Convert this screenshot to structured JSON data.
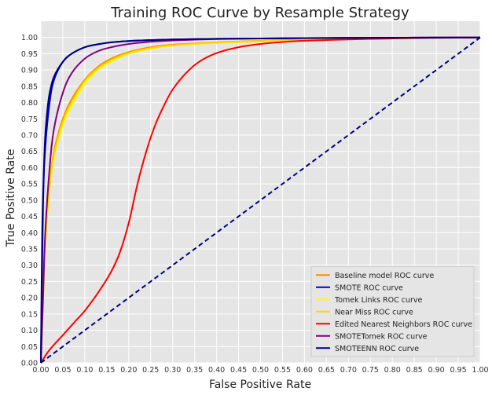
{
  "chart_data": {
    "type": "line",
    "title": "Training ROC Curve by Resample Strategy",
    "xlabel": "False Positive Rate",
    "ylabel": "True Positive Rate",
    "xlim": [
      0,
      1
    ],
    "ylim": [
      0,
      1.05
    ],
    "xticks": [
      "0.00",
      "0.05",
      "0.10",
      "0.15",
      "0.20",
      "0.25",
      "0.30",
      "0.35",
      "0.40",
      "0.45",
      "0.50",
      "0.55",
      "0.60",
      "0.65",
      "0.70",
      "0.75",
      "0.80",
      "0.85",
      "0.90",
      "0.95",
      "1.00"
    ],
    "yticks": [
      "0.00",
      "0.05",
      "0.10",
      "0.15",
      "0.20",
      "0.25",
      "0.30",
      "0.35",
      "0.40",
      "0.45",
      "0.50",
      "0.55",
      "0.60",
      "0.65",
      "0.70",
      "0.75",
      "0.80",
      "0.85",
      "0.90",
      "0.95",
      "1.00"
    ],
    "grid": true,
    "legend_position": "bottom-right",
    "background": "#e5e5e5",
    "series": [
      {
        "name": "Baseline model ROC curve",
        "color": "#ff8c00",
        "x": [
          0,
          0.005,
          0.01,
          0.02,
          0.03,
          0.05,
          0.07,
          0.1,
          0.13,
          0.16,
          0.2,
          0.25,
          0.3,
          0.4,
          0.5,
          0.6,
          0.7,
          0.8,
          0.9,
          1.0
        ],
        "y": [
          0,
          0.2,
          0.38,
          0.55,
          0.65,
          0.75,
          0.81,
          0.87,
          0.91,
          0.935,
          0.955,
          0.97,
          0.978,
          0.985,
          0.99,
          0.993,
          0.995,
          0.997,
          0.999,
          1.0
        ]
      },
      {
        "name": "SMOTE ROC curve",
        "color": "#0000cd",
        "x": [
          0,
          0.005,
          0.01,
          0.02,
          0.03,
          0.05,
          0.07,
          0.1,
          0.13,
          0.16,
          0.2,
          0.25,
          0.3,
          0.4,
          0.5,
          0.6,
          0.7,
          0.8,
          0.9,
          1.0
        ],
        "y": [
          0,
          0.48,
          0.66,
          0.8,
          0.87,
          0.925,
          0.95,
          0.97,
          0.979,
          0.985,
          0.989,
          0.992,
          0.994,
          0.996,
          0.997,
          0.998,
          0.999,
          0.999,
          1.0,
          1.0
        ]
      },
      {
        "name": "Tomek Links ROC curve",
        "color": "#ffff00",
        "x": [
          0,
          0.005,
          0.01,
          0.02,
          0.03,
          0.05,
          0.07,
          0.1,
          0.13,
          0.16,
          0.2,
          0.25,
          0.3,
          0.4,
          0.5,
          0.6,
          0.7,
          0.8,
          0.9,
          1.0
        ],
        "y": [
          0,
          0.19,
          0.36,
          0.53,
          0.63,
          0.73,
          0.79,
          0.855,
          0.9,
          0.925,
          0.95,
          0.965,
          0.975,
          0.983,
          0.988,
          0.992,
          0.995,
          0.997,
          0.999,
          1.0
        ]
      },
      {
        "name": "Near Miss ROC curve",
        "color": "#ffd700",
        "x": [
          0,
          0.005,
          0.01,
          0.02,
          0.03,
          0.05,
          0.07,
          0.1,
          0.13,
          0.16,
          0.2,
          0.25,
          0.3,
          0.4,
          0.5,
          0.6,
          0.7,
          0.8,
          0.9,
          1.0
        ],
        "y": [
          0,
          0.19,
          0.37,
          0.54,
          0.64,
          0.74,
          0.8,
          0.865,
          0.905,
          0.93,
          0.952,
          0.967,
          0.976,
          0.984,
          0.989,
          0.992,
          0.995,
          0.997,
          0.999,
          1.0
        ]
      },
      {
        "name": "Edited Nearest Neighbors ROC curve",
        "color": "#ff0000",
        "x": [
          0,
          0.02,
          0.05,
          0.08,
          0.1,
          0.13,
          0.16,
          0.18,
          0.2,
          0.22,
          0.24,
          0.26,
          0.28,
          0.3,
          0.33,
          0.36,
          0.4,
          0.45,
          0.5,
          0.55,
          0.6,
          0.7,
          0.8,
          0.9,
          1.0
        ],
        "y": [
          0,
          0.04,
          0.085,
          0.13,
          0.16,
          0.215,
          0.28,
          0.34,
          0.43,
          0.55,
          0.65,
          0.73,
          0.79,
          0.84,
          0.89,
          0.925,
          0.952,
          0.97,
          0.98,
          0.986,
          0.99,
          0.994,
          0.997,
          0.999,
          1.0
        ]
      },
      {
        "name": "SMOTETomek ROC curve",
        "color": "#800080",
        "x": [
          0,
          0.005,
          0.01,
          0.02,
          0.03,
          0.05,
          0.07,
          0.1,
          0.13,
          0.16,
          0.2,
          0.25,
          0.3,
          0.4,
          0.5,
          0.6,
          0.7,
          0.8,
          0.9,
          1.0
        ],
        "y": [
          0,
          0.2,
          0.4,
          0.6,
          0.72,
          0.83,
          0.89,
          0.935,
          0.958,
          0.97,
          0.98,
          0.987,
          0.991,
          0.995,
          0.997,
          0.998,
          0.999,
          0.999,
          1.0,
          1.0
        ]
      },
      {
        "name": "SMOTEENN ROC curve",
        "color": "#000080",
        "x": [
          0,
          0.003,
          0.007,
          0.01,
          0.015,
          0.02,
          0.03,
          0.05,
          0.07,
          0.1,
          0.13,
          0.16,
          0.2,
          0.25,
          0.3,
          0.4,
          0.5,
          0.6,
          0.8,
          1.0
        ],
        "y": [
          0,
          0.4,
          0.6,
          0.7,
          0.78,
          0.83,
          0.88,
          0.925,
          0.95,
          0.97,
          0.979,
          0.985,
          0.989,
          0.992,
          0.994,
          0.996,
          0.997,
          0.998,
          0.999,
          1.0
        ]
      },
      {
        "name": "",
        "color": "#000080",
        "dashed": true,
        "x": [
          0,
          1
        ],
        "y": [
          0,
          1
        ]
      }
    ]
  }
}
